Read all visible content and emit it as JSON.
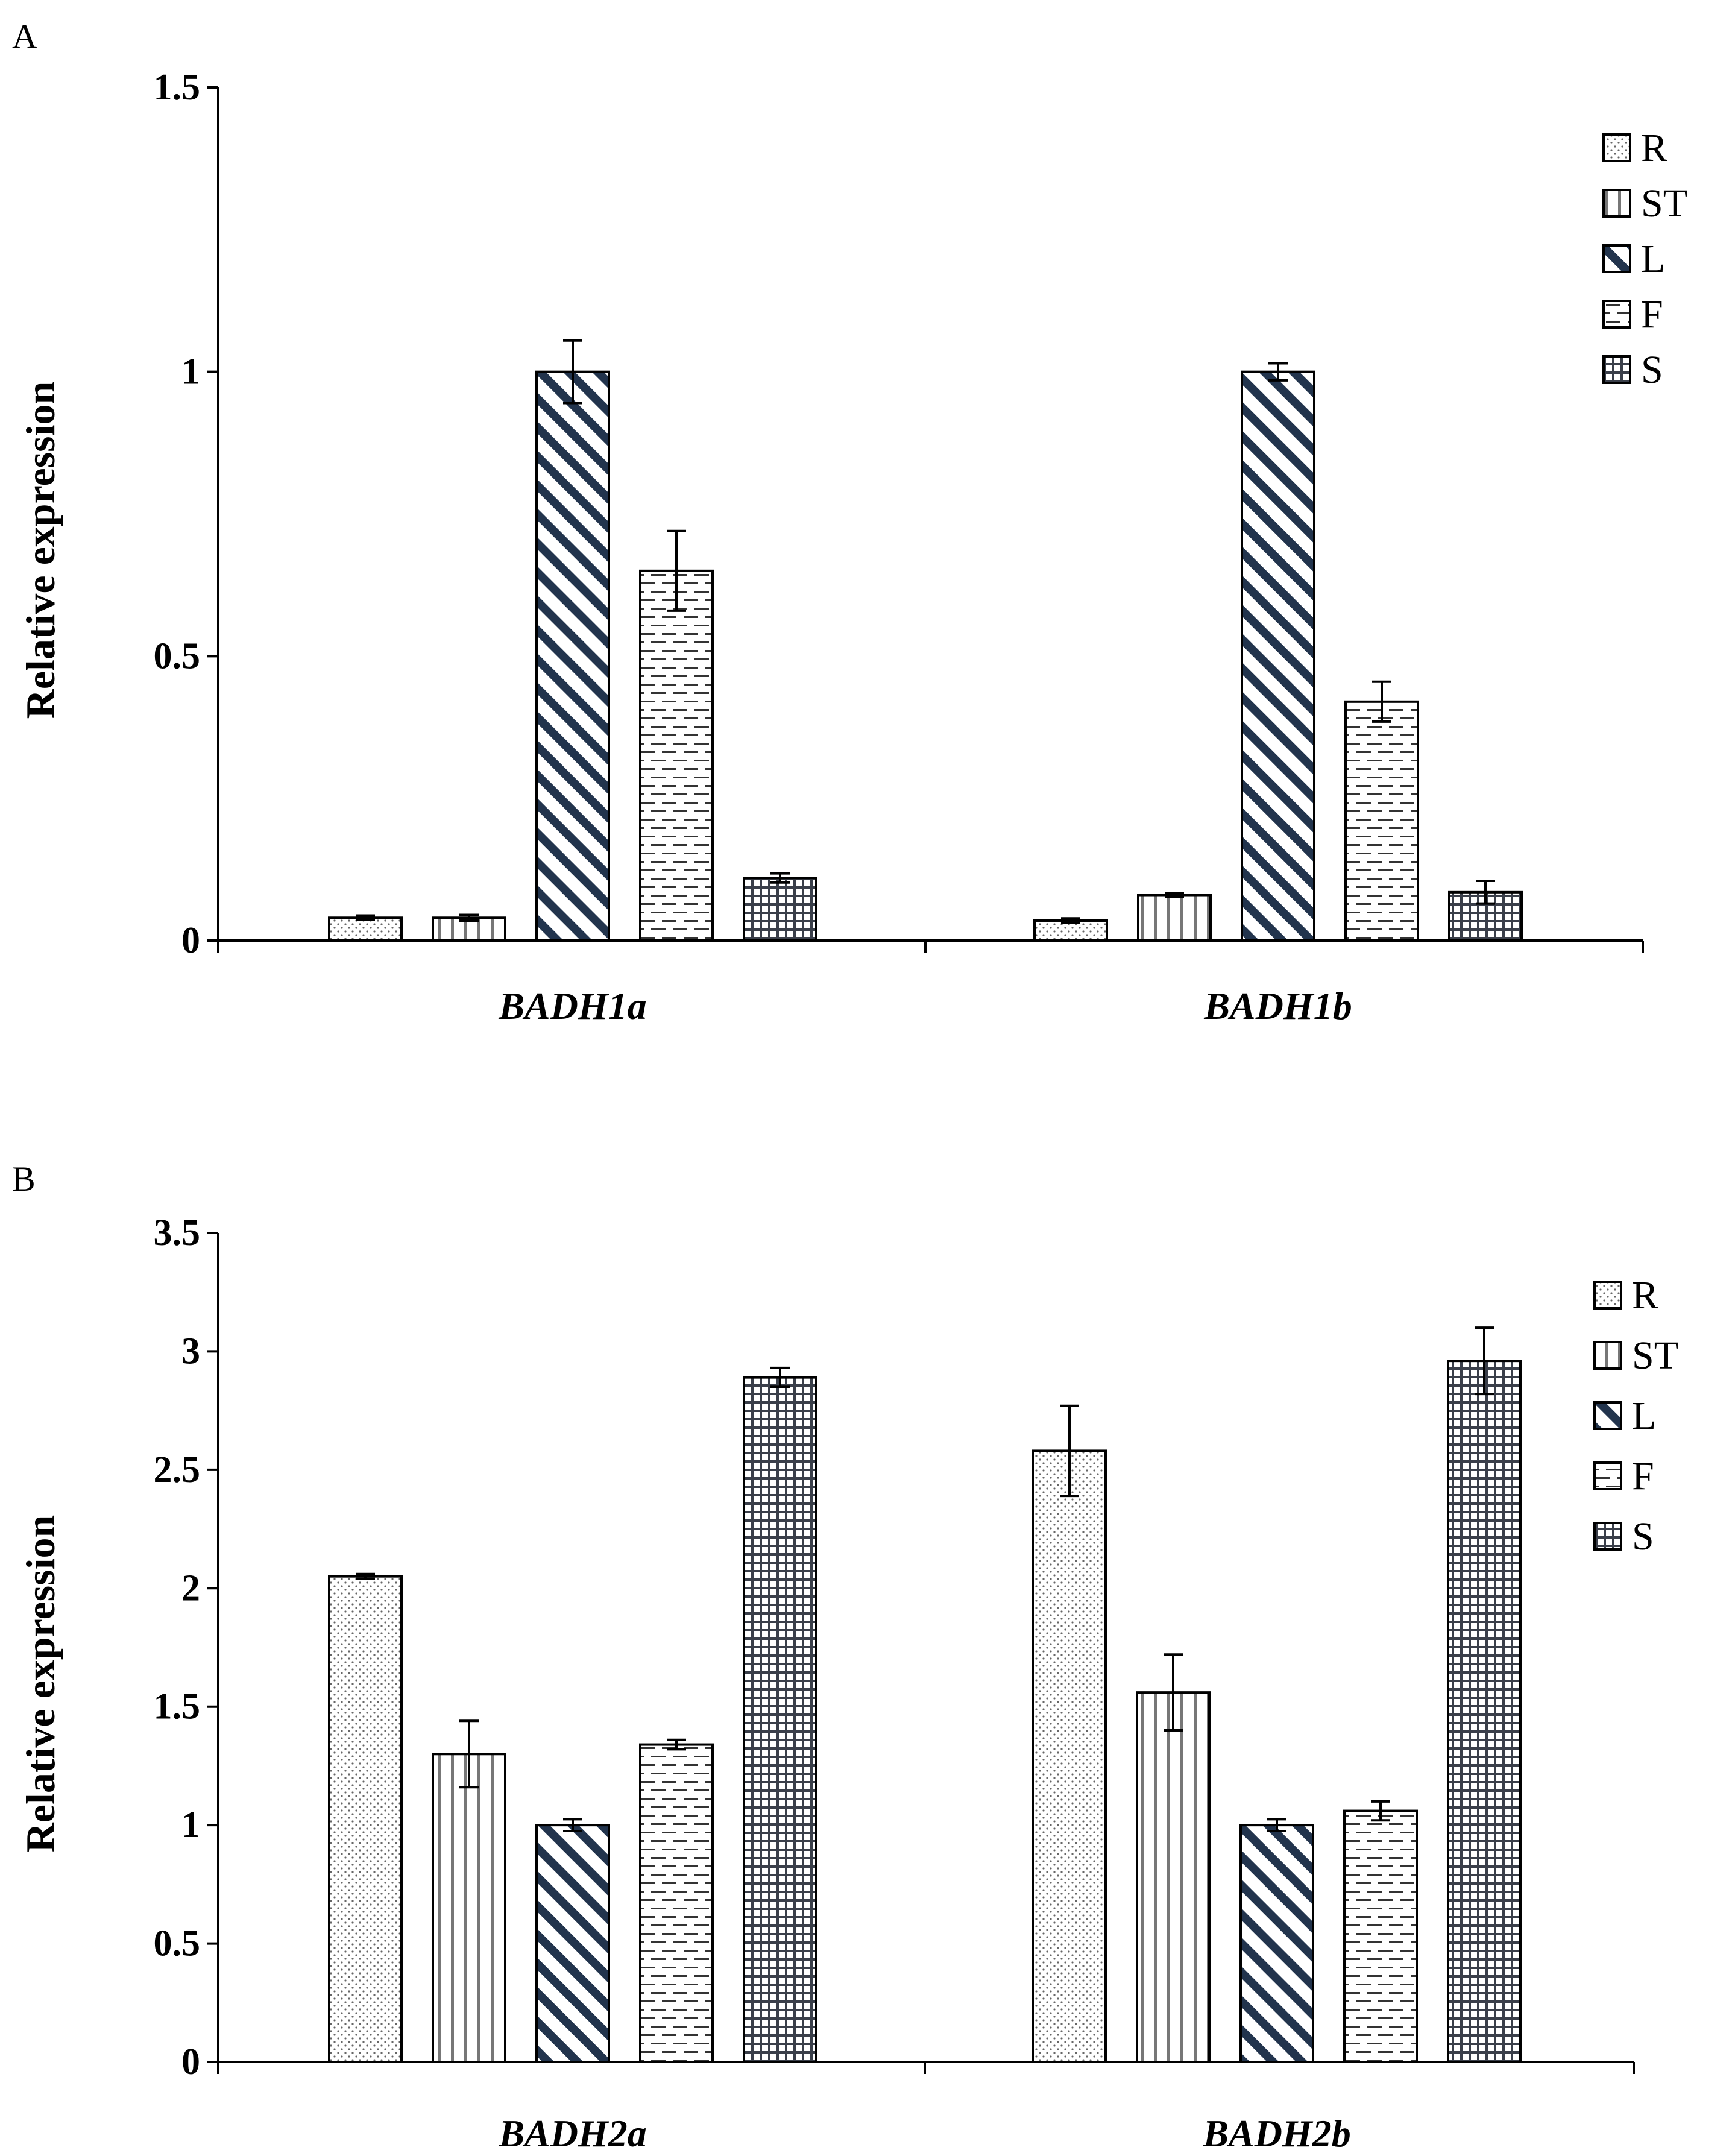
{
  "chart_data": [
    {
      "panel": "A",
      "type": "bar",
      "categories": [
        "BADH1a",
        "BADH1b"
      ],
      "series": [
        {
          "name": "R",
          "values": [
            0.04,
            0.035
          ],
          "errors": [
            0.004,
            0.004
          ]
        },
        {
          "name": "ST",
          "values": [
            0.04,
            0.08
          ],
          "errors": [
            0.005,
            0.003
          ]
        },
        {
          "name": "L",
          "values": [
            1.0,
            1.0
          ],
          "errors": [
            0.055,
            0.015
          ]
        },
        {
          "name": "F",
          "values": [
            0.65,
            0.42
          ],
          "errors": [
            0.07,
            0.035
          ]
        },
        {
          "name": "S",
          "values": [
            0.11,
            0.085
          ],
          "errors": [
            0.008,
            0.02
          ]
        }
      ],
      "xlabel": "",
      "ylabel": "Relative expression",
      "ylim": [
        0,
        1.5
      ],
      "yticks": [
        "0",
        "0.5",
        "1",
        "1.5"
      ],
      "ytick_values": [
        0,
        0.5,
        1,
        1.5
      ],
      "legend": "top-right"
    },
    {
      "panel": "B",
      "type": "bar",
      "categories": [
        "BADH2a",
        "BADH2b"
      ],
      "series": [
        {
          "name": "R",
          "values": [
            2.05,
            2.58
          ],
          "errors": [
            0.01,
            0.19
          ]
        },
        {
          "name": "ST",
          "values": [
            1.3,
            1.56
          ],
          "errors": [
            0.14,
            0.16
          ]
        },
        {
          "name": "L",
          "values": [
            1.0,
            1.0
          ],
          "errors": [
            0.025,
            0.025
          ]
        },
        {
          "name": "F",
          "values": [
            1.34,
            1.06
          ],
          "errors": [
            0.02,
            0.04
          ]
        },
        {
          "name": "S",
          "values": [
            2.89,
            2.96
          ],
          "errors": [
            0.04,
            0.14
          ]
        }
      ],
      "xlabel": "",
      "ylabel": "Relative expression",
      "ylim": [
        0,
        3.5
      ],
      "yticks": [
        "0",
        "0.5",
        "1",
        "1.5",
        "2",
        "2.5",
        "3",
        "3.5"
      ],
      "ytick_values": [
        0,
        0.5,
        1,
        1.5,
        2,
        2.5,
        3,
        3.5
      ],
      "legend": "top-right"
    }
  ]
}
